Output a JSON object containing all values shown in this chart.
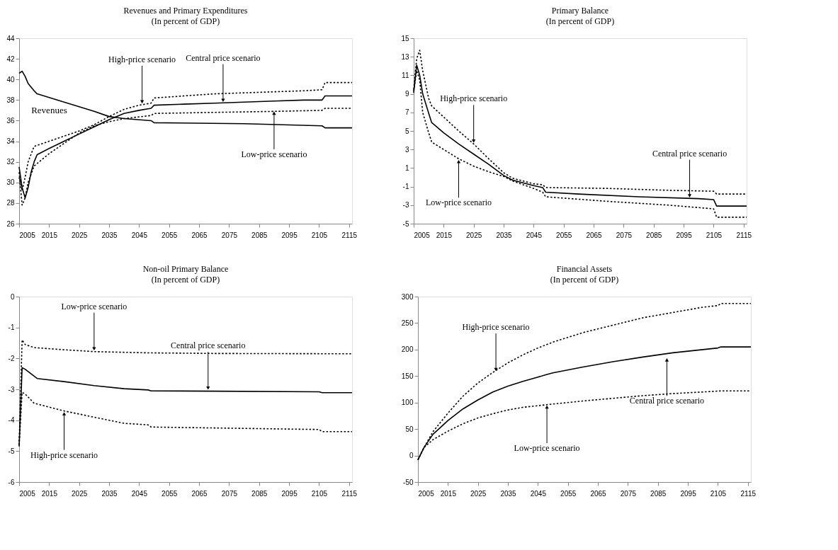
{
  "chart_data": [
    {
      "type": "line",
      "title": "Revenues and Primary Expenditures",
      "subtitle": "(In percent of GDP)",
      "xlim": [
        2005,
        2116
      ],
      "xticks": [
        2005,
        2015,
        2025,
        2035,
        2045,
        2055,
        2065,
        2075,
        2085,
        2095,
        2105,
        2115
      ],
      "ylim": [
        26,
        44
      ],
      "yticks": [
        26,
        28,
        30,
        32,
        34,
        36,
        38,
        40,
        42,
        44
      ],
      "series": [
        {
          "color": "#000000",
          "line_style": "solid",
          "x": [
            2005,
            2006,
            2007,
            2008,
            2009,
            2010,
            2011,
            2015,
            2020,
            2025,
            2030,
            2035,
            2040,
            2045,
            2049,
            2050,
            2060,
            2070,
            2080,
            2090,
            2100,
            2106,
            2107,
            2116
          ],
          "values": [
            31.5,
            29.5,
            28.5,
            29.5,
            31,
            32,
            32.7,
            33.3,
            34.0,
            34.7,
            35.4,
            36.1,
            36.7,
            37.0,
            37.2,
            37.5,
            37.6,
            37.7,
            37.8,
            37.9,
            38.0,
            38.0,
            38.4,
            38.4
          ]
        },
        {
          "color": "#000000",
          "line_style": "dotted",
          "x": [
            2005,
            2006,
            2007,
            2008,
            2010,
            2015,
            2020,
            2025,
            2030,
            2035,
            2040,
            2045,
            2049,
            2050,
            2060,
            2070,
            2080,
            2090,
            2100,
            2106,
            2107,
            2116
          ],
          "values": [
            30.5,
            29.2,
            30.5,
            32,
            33.5,
            34.0,
            34.5,
            35.0,
            35.6,
            36.4,
            37.1,
            37.5,
            37.7,
            38.2,
            38.4,
            38.6,
            38.7,
            38.8,
            38.9,
            39.0,
            39.7,
            39.7
          ]
        },
        {
          "color": "#000000",
          "line_style": "dotted",
          "x": [
            2005,
            2006,
            2007,
            2008,
            2010,
            2015,
            2020,
            2025,
            2030,
            2035,
            2040,
            2049,
            2050,
            2070,
            2090,
            2106,
            2107,
            2116
          ],
          "values": [
            31,
            27.8,
            28.5,
            30,
            31.6,
            32.8,
            33.8,
            34.8,
            35.5,
            35.9,
            36.2,
            36.5,
            36.7,
            36.8,
            36.9,
            37.0,
            37.2,
            37.2
          ]
        },
        {
          "name": "Revenues",
          "color": "#000000",
          "line_style": "solid",
          "x": [
            2005,
            2006,
            2007,
            2008,
            2010,
            2011,
            2020,
            2030,
            2035,
            2040,
            2049,
            2050,
            2080,
            2106,
            2107,
            2116
          ],
          "values": [
            40.6,
            40.8,
            40.3,
            39.6,
            38.9,
            38.6,
            37.8,
            36.9,
            36.4,
            36.2,
            36.0,
            35.8,
            35.7,
            35.5,
            35.3,
            35.3
          ]
        }
      ],
      "annotations": [
        {
          "text": "High-price scenario",
          "x": 2046,
          "y": 37.55
        },
        {
          "text": "Central price scenario",
          "x": 2073,
          "y": 37.7
        },
        {
          "text": "Low-price scenario",
          "x": 2090,
          "y": 37.0
        }
      ]
    },
    {
      "type": "line",
      "title": "Primary Balance",
      "subtitle": "(In percent of GDP)",
      "xlim": [
        2005,
        2116
      ],
      "xticks": [
        2005,
        2015,
        2025,
        2035,
        2045,
        2055,
        2065,
        2075,
        2085,
        2095,
        2105,
        2115
      ],
      "ylim": [
        -5,
        15
      ],
      "yticks": [
        -5,
        -3,
        -1,
        1,
        3,
        5,
        7,
        9,
        11,
        13,
        15
      ],
      "series": [
        {
          "color": "#000000",
          "line_style": "solid",
          "x": [
            2005,
            2006,
            2007,
            2008,
            2010,
            2011,
            2015,
            2020,
            2025,
            2030,
            2035,
            2038,
            2045,
            2048,
            2049,
            2060,
            2080,
            2100,
            2105,
            2106,
            2116
          ],
          "values": [
            9.1,
            12.1,
            11.0,
            9,
            6.9,
            5.9,
            4.8,
            3.6,
            2.5,
            1.4,
            0.2,
            -0.3,
            -0.9,
            -1.1,
            -1.6,
            -1.8,
            -2.1,
            -2.3,
            -2.4,
            -3.1,
            -3.1
          ]
        },
        {
          "color": "#000000",
          "line_style": "dotted",
          "x": [
            2005,
            2006,
            2007,
            2008,
            2010,
            2011,
            2015,
            2020,
            2025,
            2030,
            2035,
            2038,
            2045,
            2048,
            2049,
            2070,
            2090,
            2105,
            2106,
            2116
          ],
          "values": [
            9.5,
            12.8,
            13.7,
            11.5,
            8.5,
            7.7,
            6.5,
            5.0,
            3.6,
            2.0,
            0.5,
            -0.1,
            -0.7,
            -0.8,
            -1.1,
            -1.2,
            -1.4,
            -1.5,
            -1.8,
            -1.8
          ]
        },
        {
          "color": "#000000",
          "line_style": "dotted",
          "x": [
            2005,
            2006,
            2007,
            2008,
            2010,
            2011,
            2015,
            2020,
            2025,
            2030,
            2035,
            2038,
            2045,
            2048,
            2049,
            2070,
            2090,
            2105,
            2106,
            2116
          ],
          "values": [
            9.3,
            11.5,
            10.5,
            7,
            4.8,
            3.8,
            3.0,
            2.0,
            1.2,
            0.6,
            0.1,
            -0.4,
            -1.2,
            -1.6,
            -2.1,
            -2.6,
            -3.0,
            -3.4,
            -4.3,
            -4.3
          ]
        }
      ],
      "annotations": [
        {
          "text": "High-price scenario",
          "x": 2025,
          "y": 3.6
        },
        {
          "text": "Low-price scenario",
          "x": 2020,
          "y": 2.0
        },
        {
          "text": "Central price scenario",
          "x": 2097,
          "y": -2.3
        }
      ]
    },
    {
      "type": "line",
      "title": "Non-oil Primary Balance",
      "subtitle": "(In percent of GDP)",
      "xlim": [
        2005,
        2116
      ],
      "xticks": [
        2005,
        2015,
        2025,
        2035,
        2045,
        2055,
        2065,
        2075,
        2085,
        2095,
        2105,
        2115
      ],
      "ylim": [
        -6,
        0
      ],
      "yticks": [
        -6,
        -5,
        -4,
        -3,
        -2,
        -1,
        0
      ],
      "series": [
        {
          "color": "#000000",
          "line_style": "solid",
          "x": [
            2005,
            2006,
            2007,
            2009,
            2011,
            2020,
            2030,
            2040,
            2048,
            2049,
            2070,
            2105,
            2106,
            2116
          ],
          "values": [
            -4.85,
            -2.3,
            -2.35,
            -2.5,
            -2.65,
            -2.75,
            -2.88,
            -2.98,
            -3.02,
            -3.05,
            -3.06,
            -3.08,
            -3.11,
            -3.11
          ]
        },
        {
          "color": "#000000",
          "line_style": "dotted",
          "x": [
            2005,
            2006,
            2007,
            2010,
            2020,
            2030,
            2040,
            2048,
            2049,
            2070,
            2105,
            2106,
            2116
          ],
          "values": [
            -4.8,
            -3.1,
            -3.15,
            -3.45,
            -3.7,
            -3.9,
            -4.1,
            -4.15,
            -4.22,
            -4.25,
            -4.3,
            -4.37,
            -4.37
          ]
        },
        {
          "color": "#000000",
          "line_style": "dotted",
          "x": [
            2005,
            2006,
            2007,
            2010,
            2020,
            2030,
            2048,
            2070,
            2116
          ],
          "values": [
            -4.8,
            -1.4,
            -1.55,
            -1.65,
            -1.72,
            -1.78,
            -1.82,
            -1.84,
            -1.85
          ]
        }
      ],
      "annotations": [
        {
          "text": "Low-price scenario",
          "x": 2030,
          "y": -1.78
        },
        {
          "text": "Central price scenario",
          "x": 2068,
          "y": -3.05
        },
        {
          "text": "High-price scenario",
          "x": 2020,
          "y": -3.7
        }
      ]
    },
    {
      "type": "line",
      "title": "Financial Assets",
      "subtitle": "(In percent of GDP)",
      "xlim": [
        2005,
        2116
      ],
      "xticks": [
        2005,
        2015,
        2025,
        2035,
        2045,
        2055,
        2065,
        2075,
        2085,
        2095,
        2105,
        2115
      ],
      "ylim": [
        -50,
        300
      ],
      "yticks": [
        -50,
        0,
        50,
        100,
        150,
        200,
        250,
        300
      ],
      "series": [
        {
          "color": "#000000",
          "line_style": "solid",
          "x": [
            2005,
            2007,
            2010,
            2015,
            2020,
            2025,
            2030,
            2035,
            2040,
            2045,
            2048,
            2050,
            2060,
            2070,
            2080,
            2090,
            2100,
            2105,
            2106,
            2116
          ],
          "values": [
            -8,
            15,
            40,
            66,
            88,
            105,
            120,
            131,
            140,
            148,
            153,
            156,
            167,
            177,
            186,
            194,
            200,
            203,
            205,
            205
          ]
        },
        {
          "color": "#000000",
          "line_style": "dotted",
          "x": [
            2005,
            2007,
            2010,
            2015,
            2020,
            2025,
            2030,
            2035,
            2040,
            2045,
            2050,
            2060,
            2070,
            2080,
            2090,
            2100,
            2105,
            2106,
            2116
          ],
          "values": [
            -8,
            15,
            45,
            80,
            112,
            137,
            157,
            175,
            190,
            203,
            214,
            232,
            246,
            260,
            270,
            280,
            283,
            287,
            287
          ]
        },
        {
          "color": "#000000",
          "line_style": "dotted",
          "x": [
            2005,
            2007,
            2010,
            2015,
            2020,
            2025,
            2030,
            2035,
            2040,
            2048,
            2060,
            2070,
            2080,
            2090,
            2100,
            2106,
            2116
          ],
          "values": [
            -8,
            15,
            30,
            46,
            60,
            71,
            79,
            86,
            91,
            96,
            103,
            108,
            113,
            117,
            120,
            122,
            122
          ]
        }
      ],
      "annotations": [
        {
          "text": "High-price scenario",
          "x": 2031,
          "y": 157
        },
        {
          "text": "Low-price scenario",
          "x": 2048,
          "y": 97
        },
        {
          "text": "Central price scenario",
          "x": 2088,
          "y": 186
        }
      ]
    }
  ]
}
